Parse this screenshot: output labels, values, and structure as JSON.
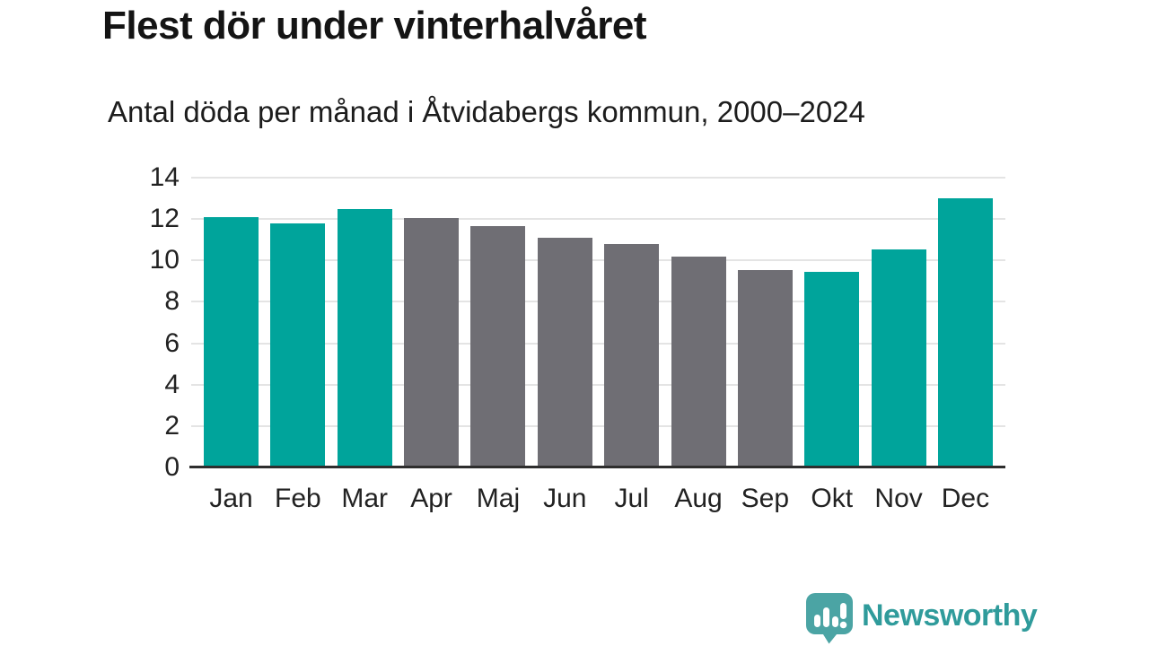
{
  "chart_data": {
    "type": "bar",
    "title": "Flest dör under vinterhalvåret",
    "subtitle": "Antal döda per månad i Åtvidabergs kommun, 2000–2024",
    "categories": [
      "Jan",
      "Feb",
      "Mar",
      "Apr",
      "Maj",
      "Jun",
      "Jul",
      "Aug",
      "Sep",
      "Okt",
      "Nov",
      "Dec"
    ],
    "values": [
      12.1,
      11.8,
      12.5,
      12.05,
      11.65,
      11.1,
      10.8,
      10.2,
      9.55,
      9.45,
      10.55,
      13.0
    ],
    "bar_color_keys": [
      "winter",
      "winter",
      "winter",
      "summer",
      "summer",
      "summer",
      "summer",
      "summer",
      "summer",
      "winter",
      "winter",
      "winter"
    ],
    "palette": {
      "winter": "#00a49b",
      "summer": "#6f6e74"
    },
    "xlabel": "",
    "ylabel": "",
    "ylim": [
      0,
      14
    ],
    "yticks": [
      0,
      2,
      4,
      6,
      8,
      10,
      12,
      14
    ],
    "grid": true,
    "legend": false,
    "gridline_color": "#e4e4e4",
    "axis_line_color": "#2e2e2e",
    "tick_label_color": "#222222"
  },
  "footer": {
    "brand": "Newsworthy",
    "brand_color": "#2f9b9b",
    "logo_icon": "newsworthy-bar-chart-speech-bubble",
    "logo_bubble_color": "#4ba4a4",
    "logo_glyph_color": "#ffffff"
  }
}
